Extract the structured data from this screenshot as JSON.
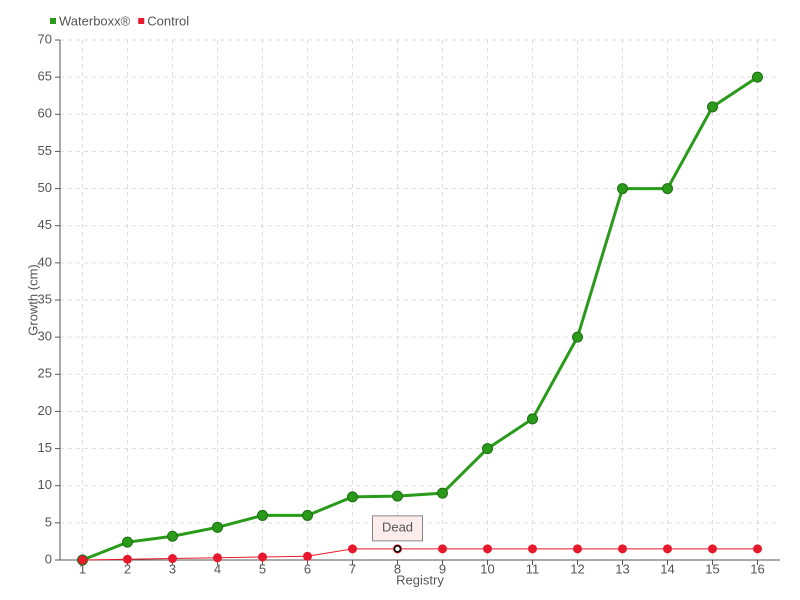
{
  "chart_data": {
    "type": "line",
    "x": [
      1,
      2,
      3,
      4,
      5,
      6,
      7,
      8,
      9,
      10,
      11,
      12,
      13,
      14,
      15,
      16
    ],
    "series": [
      {
        "name": "Waterboxx®",
        "color": "#2a9a1a",
        "values": [
          0,
          2.4,
          3.2,
          4.4,
          6,
          6,
          8.5,
          8.6,
          9,
          15,
          19,
          30,
          50,
          50,
          61,
          65
        ]
      },
      {
        "name": "Control",
        "color": "#e8192c",
        "values": [
          0,
          0.1,
          0.2,
          0.3,
          0.4,
          0.5,
          1.5,
          1.5,
          1.5,
          1.5,
          1.5,
          1.5,
          1.5,
          1.5,
          1.5,
          1.5
        ]
      }
    ],
    "xlabel": "Registry",
    "ylabel": "Growth (cm)",
    "xlim": [
      0.5,
      16.5
    ],
    "xticks": [
      1,
      2,
      3,
      4,
      5,
      6,
      7,
      8,
      9,
      10,
      11,
      12,
      13,
      14,
      15,
      16
    ],
    "ylim": [
      0,
      70
    ],
    "yticks": [
      0,
      5,
      10,
      15,
      20,
      25,
      30,
      35,
      40,
      45,
      50,
      55,
      60,
      65,
      70
    ],
    "grid": true,
    "legend": "top-left",
    "annotation": {
      "text": "Dead",
      "x": 8,
      "y": 1.5
    }
  }
}
